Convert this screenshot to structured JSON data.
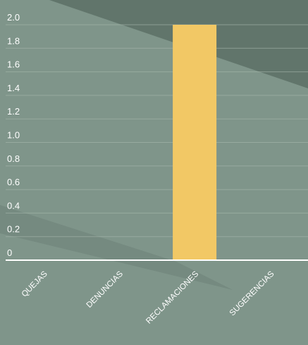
{
  "chart_data": {
    "type": "bar",
    "categories": [
      "QUEJAS",
      "DENUNCIAS",
      "RECLAMACIONES",
      "SUGERENCIAS"
    ],
    "values": [
      0,
      0,
      2,
      0
    ],
    "ylim": [
      0,
      2.0
    ],
    "yticks": [
      "0",
      "0.2",
      "0.4",
      "0.6",
      "0.8",
      "1.0",
      "1.2",
      "1.4",
      "1.6",
      "1.8",
      "2.0"
    ],
    "grid": true,
    "legend": "none",
    "colors": {
      "bar": "#f2c865",
      "background": "#7f958a",
      "background_dark": "#5c7065",
      "axis": "#ffffff",
      "grid": "#a7b8ae",
      "text": "#ffffff"
    }
  }
}
